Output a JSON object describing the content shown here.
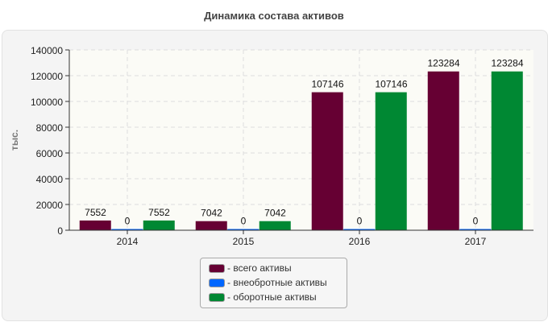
{
  "chart_data": {
    "type": "bar",
    "title": "Динамика состава активов",
    "ylabel": "тыс.",
    "xlabel": "",
    "categories": [
      "2014",
      "2015",
      "2016",
      "2017"
    ],
    "series": [
      {
        "name": "- всего активы",
        "color": "#660033",
        "values": [
          7552,
          7042,
          107146,
          123284
        ]
      },
      {
        "name": "- внеобротные активы",
        "color": "#0066ff",
        "values": [
          0,
          0,
          0,
          0
        ]
      },
      {
        "name": "- оборотные активы",
        "color": "#008833",
        "values": [
          7552,
          7042,
          107146,
          123284
        ]
      }
    ],
    "ylim": [
      0,
      140000
    ],
    "yticks": [
      0,
      20000,
      40000,
      60000,
      80000,
      100000,
      120000,
      140000
    ],
    "grid": true,
    "legend": "bottom-center"
  }
}
